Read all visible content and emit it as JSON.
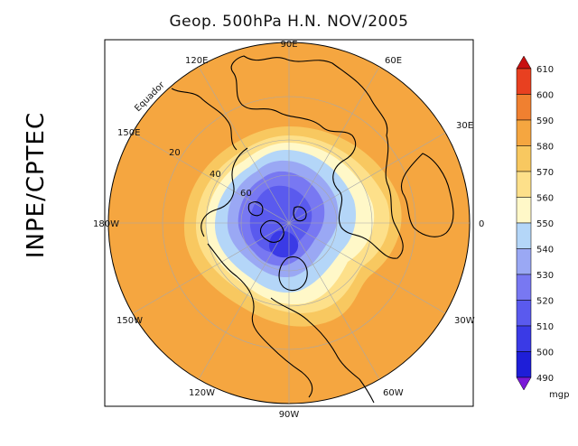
{
  "title": "Geop. 500hPa H.N. NOV/2005",
  "credit": "INPE/CPTEC",
  "map": {
    "projection": "north polar stereographic",
    "equator_label": "Equador",
    "longitude_labels": [
      {
        "text": "90E",
        "lon": 90
      },
      {
        "text": "60E",
        "lon": 60
      },
      {
        "text": "30E",
        "lon": 30
      },
      {
        "text": "0",
        "lon": 0
      },
      {
        "text": "30W",
        "lon": -30
      },
      {
        "text": "60W",
        "lon": -60
      },
      {
        "text": "90W",
        "lon": -90
      },
      {
        "text": "120W",
        "lon": -120
      },
      {
        "text": "150W",
        "lon": -150
      },
      {
        "text": "180W",
        "lon": 180
      },
      {
        "text": "150E",
        "lon": 150
      },
      {
        "text": "120E",
        "lon": 120
      }
    ],
    "latitude_labels": [
      {
        "text": "20",
        "lat": 20
      },
      {
        "text": "40",
        "lat": 40
      },
      {
        "text": "60",
        "lat": 60
      }
    ]
  },
  "colorbar": {
    "unit": "mgp",
    "levels": [
      490,
      500,
      510,
      520,
      530,
      540,
      550,
      560,
      570,
      580,
      590,
      600,
      610
    ],
    "colors": [
      "#7a19d8",
      "#1e1ed8",
      "#3a3ae6",
      "#5a5aee",
      "#7878f2",
      "#9aa8f4",
      "#b4d6f8",
      "#fff8c8",
      "#fde08a",
      "#f8c860",
      "#f5a640",
      "#f08030",
      "#e84020",
      "#c81010"
    ]
  }
}
